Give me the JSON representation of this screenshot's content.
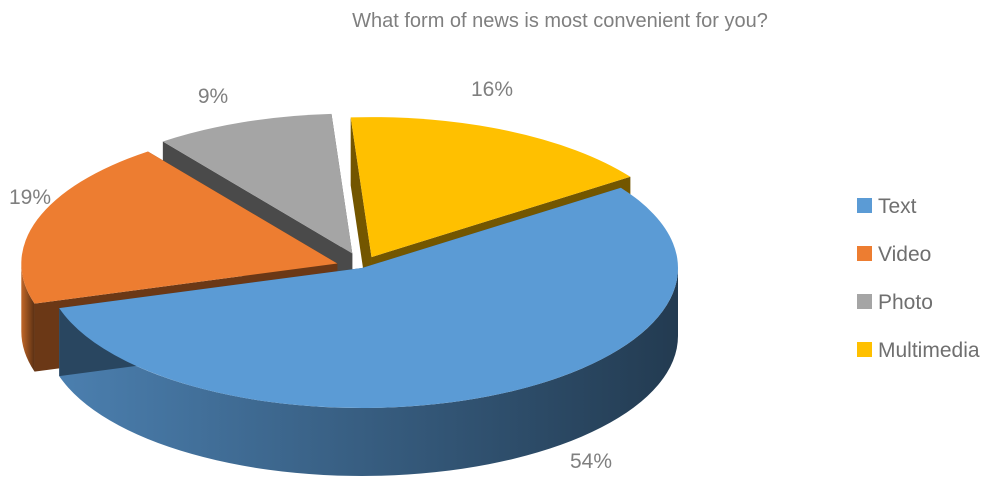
{
  "chart_data": {
    "type": "pie",
    "title": "What form of news is most convenient for you?",
    "three_d": true,
    "exploded": true,
    "categories": [
      "Text",
      "Video",
      "Photo",
      "Multimedia"
    ],
    "values": [
      54,
      19,
      9,
      16
    ],
    "data_labels": [
      "54%",
      "19%",
      "9%",
      "16%"
    ],
    "colors": [
      "#5b9bd5",
      "#ed7d31",
      "#a5a5a5",
      "#ffc000"
    ],
    "legend": {
      "position": "right",
      "items": [
        "Text",
        "Video",
        "Photo",
        "Multimedia"
      ]
    }
  }
}
